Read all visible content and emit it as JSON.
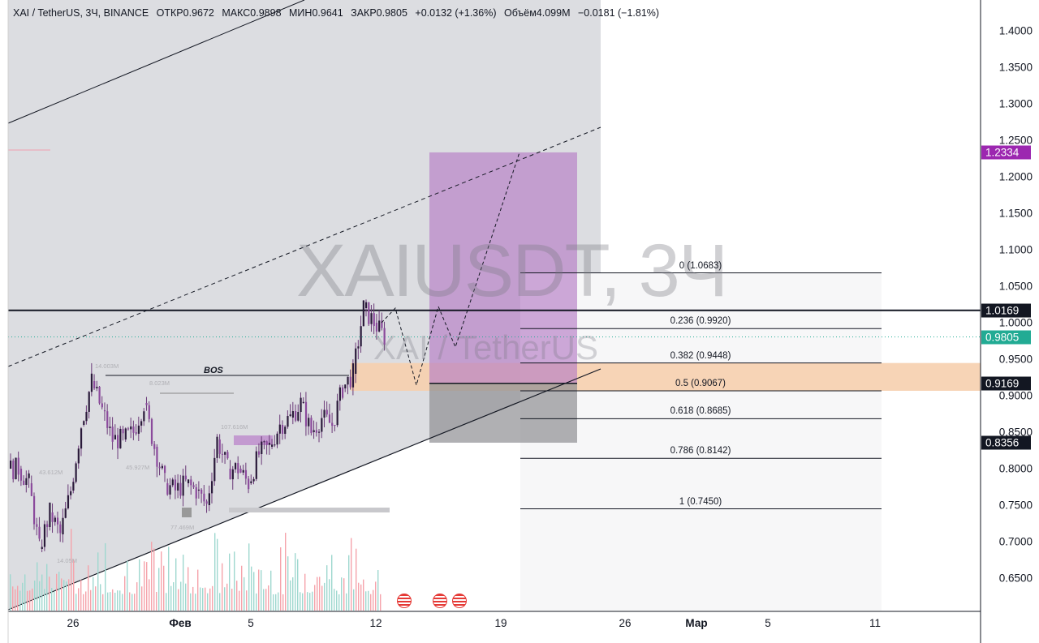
{
  "header": {
    "symbol": "XAI / TetherUS, 3Ч, BINANCE",
    "open": "ОТКР0.9672",
    "high": "МАКС0.9898",
    "low": "МИН0.9641",
    "close": "ЗАКР0.9805",
    "change": "+0.0132 (+1.36%)",
    "volume": "Объём4.099M",
    "volume_change": "−0.0181 (−1.81%)"
  },
  "watermark": {
    "symbol": "XAIUSDT, 3Ч",
    "name": "XAI / TetherUS"
  },
  "annotations": {
    "bos": "BOS",
    "volume_labels": [
      "14.003M",
      "8.023M",
      "107.616M",
      "43.612M",
      "45.927M",
      "77.469M",
      "14.05M"
    ]
  },
  "price_tags": [
    {
      "value": "1.2334",
      "color": "#9c27b0"
    },
    {
      "value": "1.0169",
      "color": "#131722"
    },
    {
      "value": "0.9805",
      "color": "#22ab94"
    },
    {
      "value": "0.9169",
      "color": "#131722"
    },
    {
      "value": "0.8356",
      "color": "#131722"
    }
  ],
  "fib_levels": [
    {
      "label": "0 (1.0683)",
      "price": 1.0683
    },
    {
      "label": "0.236 (0.9920)",
      "price": 0.992
    },
    {
      "label": "0.382 (0.9448)",
      "price": 0.9448
    },
    {
      "label": "0.5 (0.9067)",
      "price": 0.9067
    },
    {
      "label": "0.618 (0.8685)",
      "price": 0.8685
    },
    {
      "label": "0.786 (0.8142)",
      "price": 0.8142
    },
    {
      "label": "1 (0.7450)",
      "price": 0.745
    }
  ],
  "chart_data": {
    "type": "candlestick",
    "interval": "3Ч",
    "y_ticks": [
      "1.4000",
      "1.3500",
      "1.3000",
      "1.2500",
      "1.2000",
      "1.1500",
      "1.1000",
      "1.0500",
      "1.0000",
      "0.9500",
      "0.9000",
      "0.8500",
      "0.8000",
      "0.7500",
      "0.7000",
      "0.6500"
    ],
    "x_ticks": [
      "26",
      "Фев",
      "5",
      "12",
      "19",
      "26",
      "Мар",
      "5",
      "11"
    ],
    "ylim": [
      0.62,
      1.44
    ],
    "closes_12h": [
      0.8,
      0.78,
      0.69,
      0.74,
      0.71,
      0.77,
      0.86,
      0.92,
      0.88,
      0.84,
      0.84,
      0.85,
      0.89,
      0.83,
      0.78,
      0.77,
      0.78,
      0.77,
      0.75,
      0.84,
      0.8,
      0.8,
      0.78,
      0.82,
      0.83,
      0.86,
      0.87,
      0.89,
      0.85,
      0.87,
      0.86,
      0.91,
      0.93,
      1.02,
      1.0,
      0.9805
    ],
    "long_position": {
      "entry": 0.9169,
      "target": 1.2334,
      "stop": 0.8356
    },
    "horizontal_level": 1.0169,
    "last_price": 0.9805,
    "colors": {
      "up": "#22ab94",
      "down": "#f23645",
      "candle": "#2a1a3a"
    }
  }
}
